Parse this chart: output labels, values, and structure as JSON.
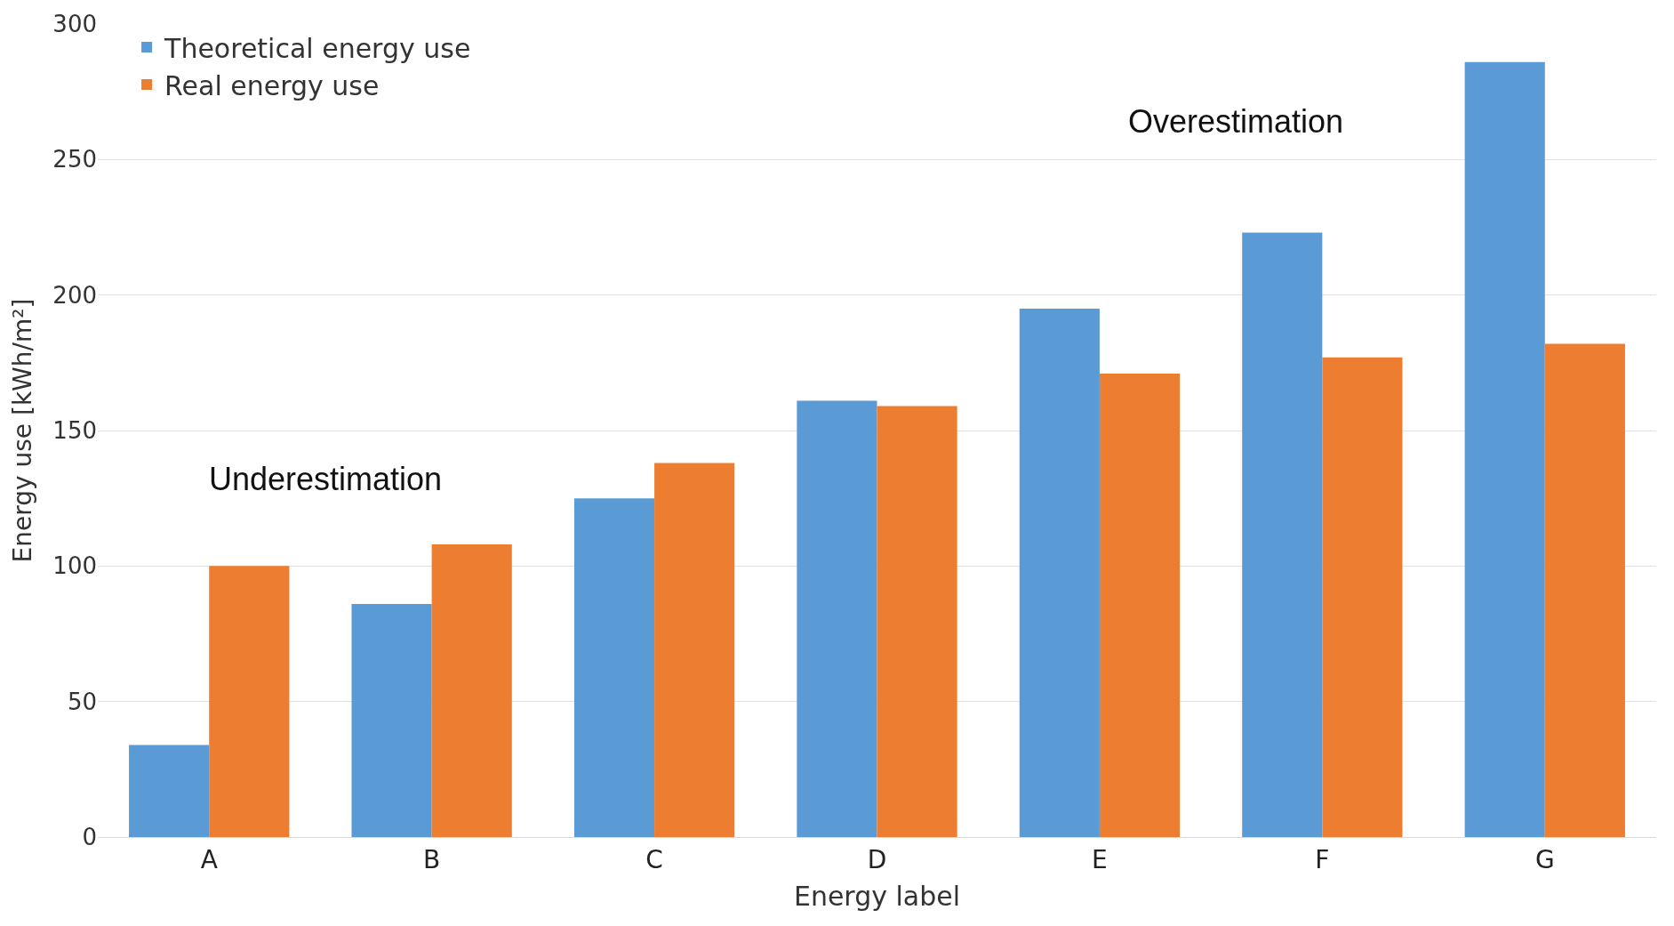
{
  "chart_data": {
    "type": "bar",
    "xlabel": "Energy label",
    "ylabel": "Energy use [kWh/m²]",
    "categories": [
      "A",
      "B",
      "C",
      "D",
      "E",
      "F",
      "G"
    ],
    "series": [
      {
        "name": "Theoretical energy use",
        "color": "#5b9bd5",
        "values": [
          34,
          86,
          125,
          161,
          195,
          223,
          286
        ]
      },
      {
        "name": "Real energy use",
        "color": "#ed7d31",
        "values": [
          100,
          108,
          138,
          159,
          171,
          177,
          182
        ]
      }
    ],
    "ylim": [
      0,
      300
    ],
    "yticks": [
      0,
      50,
      100,
      150,
      200,
      250,
      300
    ],
    "grid": "y",
    "legend": "top left",
    "annotations": [
      "Underestimation",
      "Overestimation"
    ]
  }
}
